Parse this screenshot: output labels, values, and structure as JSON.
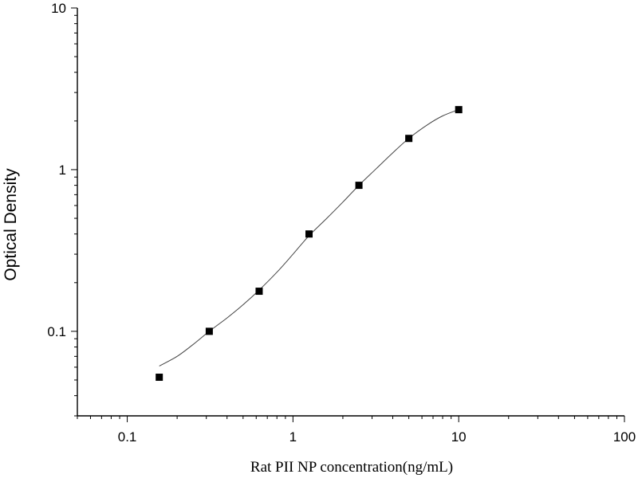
{
  "chart_data": {
    "type": "scatter",
    "xlabel": "Rat PII NP concentration(ng/mL)",
    "ylabel": "Optical Density",
    "x_scale": "log",
    "y_scale": "log",
    "xlim": [
      0.05,
      100
    ],
    "ylim": [
      0.03,
      10
    ],
    "x_tick_labels": [
      "0.1",
      "1",
      "10",
      "100"
    ],
    "y_tick_labels": [
      "0.1",
      "1",
      "10"
    ],
    "grid": false,
    "marker_color": "#000000",
    "line_color": "#444444",
    "points": {
      "x": [
        0.156,
        0.3125,
        0.625,
        1.25,
        2.5,
        5,
        10
      ],
      "y": [
        0.052,
        0.1,
        0.177,
        0.4,
        0.8,
        1.56,
        2.35
      ]
    },
    "fit_curve": {
      "x": [
        0.156,
        0.2,
        0.25,
        0.3125,
        0.4,
        0.5,
        0.625,
        0.8,
        1.0,
        1.25,
        1.6,
        2.0,
        2.5,
        3.2,
        4.0,
        5.0,
        6.5,
        8.0,
        10
      ],
      "y": [
        0.061,
        0.07,
        0.083,
        0.1,
        0.121,
        0.146,
        0.18,
        0.232,
        0.3,
        0.39,
        0.5,
        0.63,
        0.8,
        1.02,
        1.27,
        1.56,
        1.9,
        2.15,
        2.35
      ]
    }
  }
}
